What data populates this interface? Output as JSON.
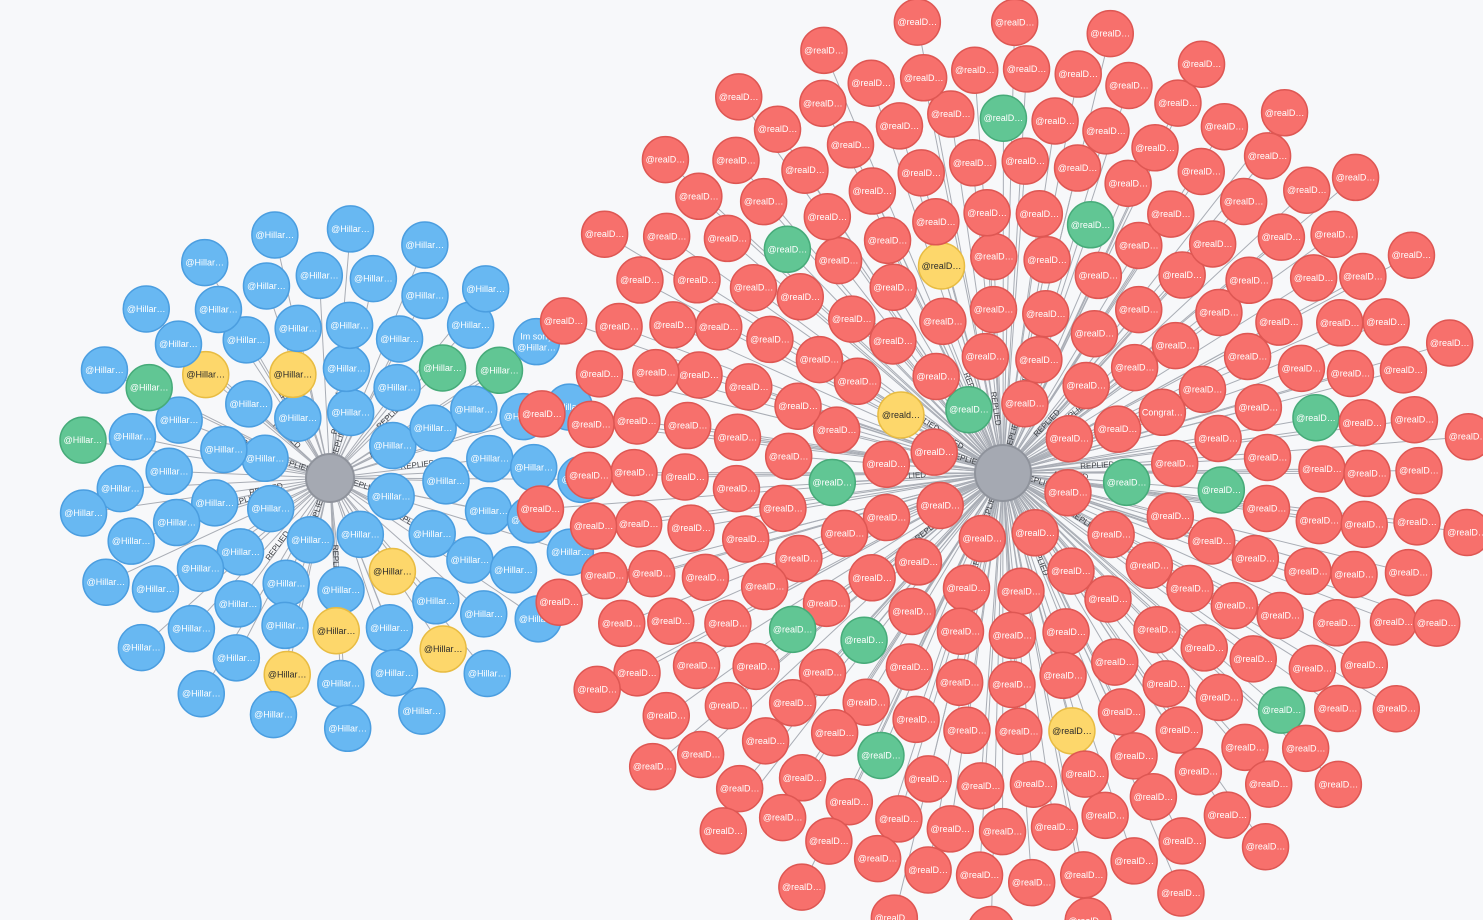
{
  "relationship_label": "REPLIED",
  "colors": {
    "background": "#f7f8fa",
    "hub": "#a5a9b2",
    "edge": "#a9adb5",
    "blue": "#68b8f2",
    "blue_stroke": "#4b9ee0",
    "red": "#f7706c",
    "red_stroke": "#de5753",
    "green": "#61c694",
    "green_stroke": "#46ab79",
    "yellow": "#fdd76b",
    "yellow_stroke": "#e8bc42"
  },
  "graphs": [
    {
      "name": "graph-hillary",
      "default_label": "@Hillar…",
      "default_color": "blue",
      "node_count": 85,
      "special_nodes": [
        {
          "index": 8,
          "color": "yellow"
        },
        {
          "index": 15,
          "color": "yellow"
        },
        {
          "index": 22,
          "color": "yellow"
        },
        {
          "index": 29,
          "color": "yellow",
          "label": "@Hillar…"
        },
        {
          "index": 34,
          "color": "green"
        },
        {
          "index": 40,
          "color": "yellow"
        },
        {
          "index": 47,
          "color": "green"
        },
        {
          "index": 55,
          "color": "green"
        },
        {
          "index": 61,
          "color": "yellow"
        },
        {
          "index": 68,
          "color": "green"
        },
        {
          "index": 76,
          "color": "blue",
          "label": "Im sorry @Hillar…"
        }
      ]
    },
    {
      "name": "graph-realdonald",
      "default_label": "@realD…",
      "default_color": "red",
      "node_count": 262,
      "special_nodes": [
        {
          "index": 5,
          "color": "green"
        },
        {
          "index": 14,
          "color": "yellow",
          "label": "@reald…"
        },
        {
          "index": 20,
          "color": "green"
        },
        {
          "index": 28,
          "color": "green"
        },
        {
          "index": 37,
          "color": "label",
          "label": "Congrat…"
        },
        {
          "index": 44,
          "color": "green"
        },
        {
          "index": 53,
          "color": "yellow",
          "label": "@realD…"
        },
        {
          "index": 61,
          "color": "green"
        },
        {
          "index": 70,
          "color": "green"
        },
        {
          "index": 83,
          "color": "green"
        },
        {
          "index": 96,
          "color": "yellow",
          "label": "@realD…"
        },
        {
          "index": 108,
          "color": "green"
        },
        {
          "index": 121,
          "color": "green"
        },
        {
          "index": 134,
          "color": "green"
        },
        {
          "index": 150,
          "color": "green"
        },
        {
          "index": 166,
          "color": "green"
        }
      ]
    }
  ]
}
